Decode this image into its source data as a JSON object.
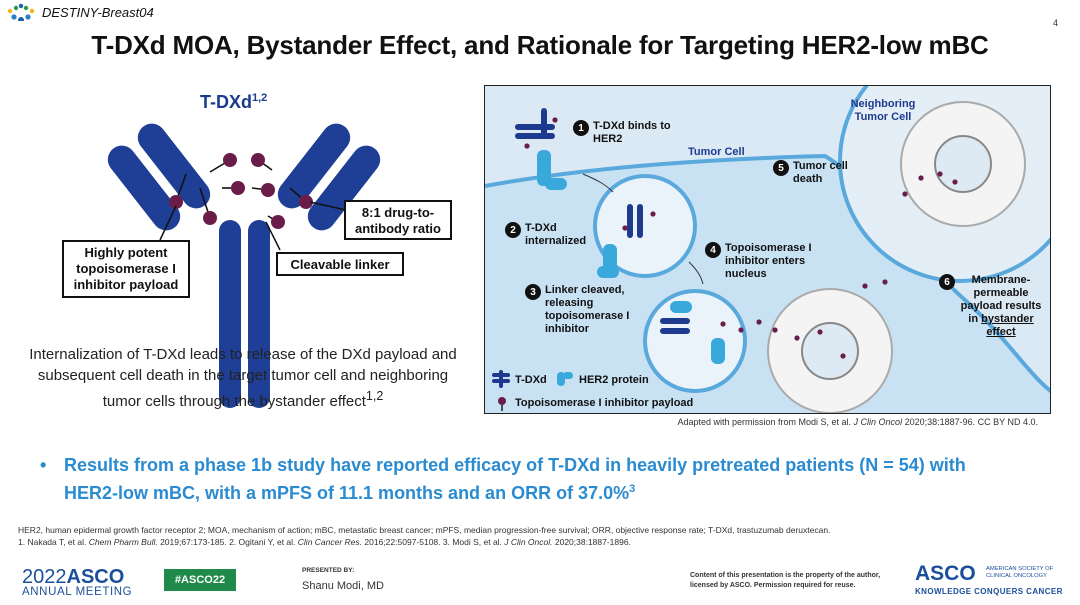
{
  "header": {
    "trial_tag": "DESTINY-Breast04",
    "page_number": "4",
    "title": "T-DXd MOA, Bystander Effect, and Rationale for Targeting HER2-low mBC"
  },
  "structure": {
    "title": "T-DXd",
    "title_refs": "1,2",
    "callouts": {
      "payload": "Highly potent topoisomerase I inhibitor payload",
      "ratio": "8:1 drug-to-antibody ratio",
      "linker": "Cleavable linker"
    },
    "caption": "Internalization of T-DXd leads to release of the DXd payload and subsequent cell death in the target tumor cell and neighboring tumor cells through the bystander effect",
    "caption_refs": "1,2"
  },
  "diagram": {
    "neighboring_cell_label": "Neighboring Tumor Cell",
    "tumor_cell_label": "Tumor Cell",
    "steps": [
      {
        "num": "1",
        "text": "T-DXd binds to HER2"
      },
      {
        "num": "2",
        "text": "T-DXd internalized"
      },
      {
        "num": "3",
        "text": "Linker cleaved, releasing topoisomerase I inhibitor"
      },
      {
        "num": "4",
        "text": "Topoisomerase I inhibitor enters nucleus"
      },
      {
        "num": "5",
        "text": "Tumor cell death"
      },
      {
        "num": "6",
        "text_plain": "Membrane-permeable payload results in",
        "text_underlined": "bystander effect"
      }
    ],
    "legend": {
      "tdxd": "T-DXd",
      "her2": "HER2 protein",
      "payload": "Topoisomerase I inhibitor payload"
    },
    "colors": {
      "antibody": "#1d3a8f",
      "her2": "#39a9dc",
      "payload": "#6b1d4a",
      "background": "#dbe9f5"
    }
  },
  "attribution": {
    "prefix": "Adapted with permission from Modi S, et al.",
    "journal": "J Clin Oncol",
    "suffix": "2020;38:1887-96. CC BY ND 4.0."
  },
  "bullet": {
    "text": "Results from a phase 1b study have reported efficacy of T-DXd in heavily pretreated patients (N = 54) with HER2-low mBC, with a mPFS of 11.1 months and an ORR of 37.0%",
    "ref": "3"
  },
  "footnotes": {
    "abbreviations": "HER2, human epidermal growth factor receptor 2; MOA, mechanism of action; mBC, metastatic breast cancer; mPFS, median progression-free survival; ORR, objective response rate; T-DXd, trastuzumab deruxtecan.",
    "ref1_a": "1. Nakada T, et al.",
    "ref1_journal": "Chem Pharm Bull.",
    "ref1_b": "2019;67:173-185. 2. Ogitani Y, et al.",
    "ref2_journal": "Clin Cancer Res.",
    "ref2_b": "2016;22:5097-5108. 3. Modi S, et al.",
    "ref3_journal": "J Clin Oncol.",
    "ref3_b": "2020;38:1887-1896."
  },
  "footer": {
    "year": "2022",
    "asco": "ASCO",
    "annual_meeting": "ANNUAL MEETING",
    "hashtag": "#ASCO22",
    "presented_by": "PRESENTED BY:",
    "presenter": "Shanu Modi, MD",
    "rights": "Content of this presentation is the property of the author, licensed by ASCO. Permission required for reuse.",
    "logo": "ASCO",
    "society": "AMERICAN SOCIETY OF CLINICAL ONCOLOGY",
    "tagline": "KNOWLEDGE CONQUERS CANCER"
  }
}
